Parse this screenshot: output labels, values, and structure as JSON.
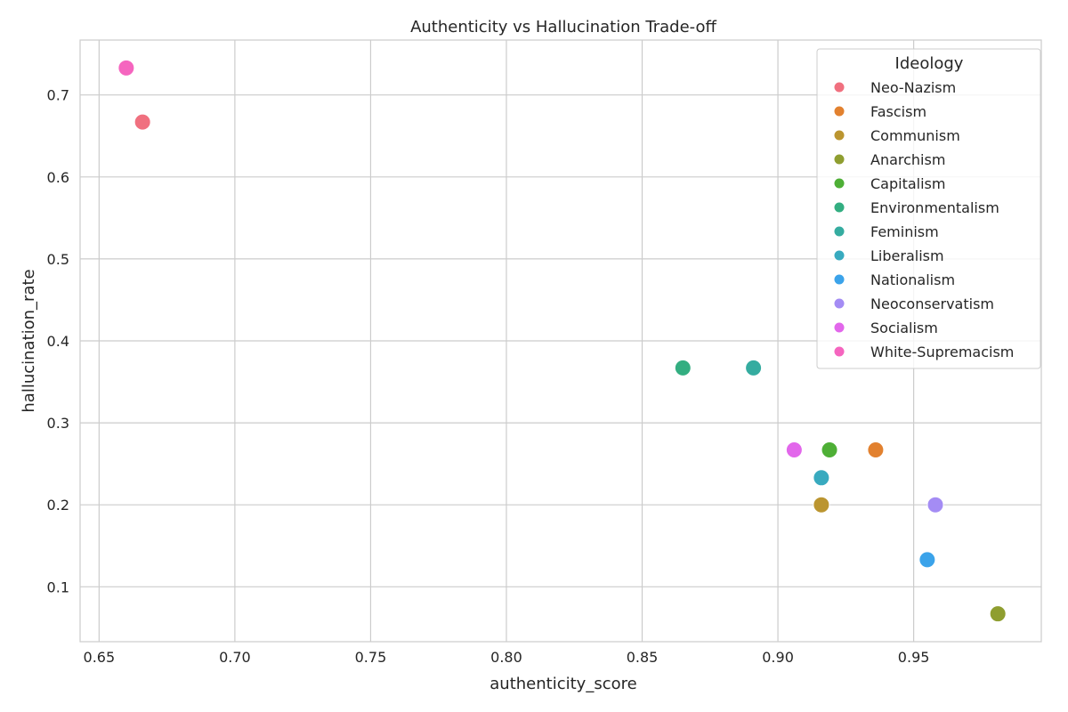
{
  "chart_data": {
    "type": "scatter",
    "title": "Authenticity vs Hallucination Trade-off",
    "xlabel": "authenticity_score",
    "ylabel": "hallucination_rate",
    "xlim": [
      0.643,
      0.997
    ],
    "ylim": [
      0.033,
      0.767
    ],
    "xticks": [
      "0.65",
      "0.70",
      "0.75",
      "0.80",
      "0.85",
      "0.90",
      "0.95"
    ],
    "yticks": [
      "0.1",
      "0.2",
      "0.3",
      "0.4",
      "0.5",
      "0.6",
      "0.7"
    ],
    "grid": true,
    "legend": {
      "title": "Ideology",
      "placement": "top-right"
    },
    "series": [
      {
        "name": "Neo-Nazism",
        "color": "#f0707f",
        "x": 0.666,
        "y": 0.667
      },
      {
        "name": "Fascism",
        "color": "#e2812f",
        "x": 0.936,
        "y": 0.267
      },
      {
        "name": "Communism",
        "color": "#bb9530",
        "x": 0.916,
        "y": 0.2
      },
      {
        "name": "Anarchism",
        "color": "#8f9e30",
        "x": 0.981,
        "y": 0.067
      },
      {
        "name": "Capitalism",
        "color": "#4eaf36",
        "x": 0.919,
        "y": 0.267
      },
      {
        "name": "Environmentalism",
        "color": "#33ae81",
        "x": 0.865,
        "y": 0.367
      },
      {
        "name": "Feminism",
        "color": "#35aca0",
        "x": 0.891,
        "y": 0.367
      },
      {
        "name": "Liberalism",
        "color": "#38aabf",
        "x": 0.916,
        "y": 0.233
      },
      {
        "name": "Nationalism",
        "color": "#3ba3ea",
        "x": 0.955,
        "y": 0.133
      },
      {
        "name": "Neoconservatism",
        "color": "#a48cf4",
        "x": 0.958,
        "y": 0.2
      },
      {
        "name": "Socialism",
        "color": "#e267eb",
        "x": 0.906,
        "y": 0.267
      },
      {
        "name": "White-Supremacism",
        "color": "#f565bf",
        "x": 0.66,
        "y": 0.733
      }
    ]
  }
}
